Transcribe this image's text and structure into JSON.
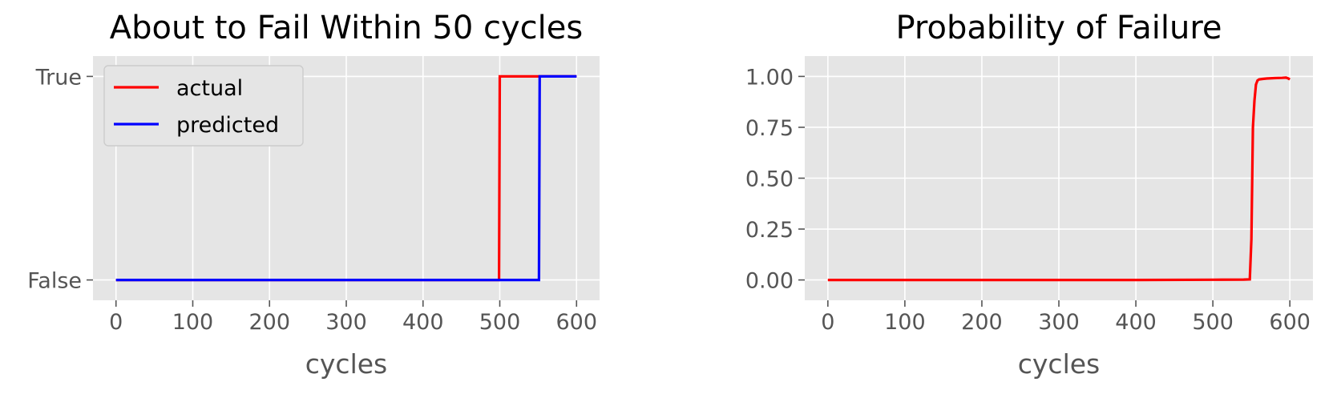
{
  "chart_data": [
    {
      "type": "line",
      "title": "About to Fail Within 50 cycles",
      "xlabel": "cycles",
      "ylabel": "",
      "xlim": [
        -30,
        630
      ],
      "ylim": [
        -0.1,
        1.1
      ],
      "xticks": [
        0,
        100,
        200,
        300,
        400,
        500,
        600
      ],
      "yticks": [
        {
          "value": 0,
          "label": "False"
        },
        {
          "value": 1,
          "label": "True"
        }
      ],
      "grid": true,
      "legend": "top-left",
      "series": [
        {
          "name": "actual",
          "color": "#ff0000",
          "x": [
            0,
            499,
            500,
            600
          ],
          "y": [
            0,
            0,
            1,
            1
          ]
        },
        {
          "name": "predicted",
          "color": "#0000ff",
          "x": [
            0,
            551,
            552,
            600
          ],
          "y": [
            0,
            0,
            1,
            1
          ]
        }
      ]
    },
    {
      "type": "line",
      "title": "Probability of Failure",
      "xlabel": "cycles",
      "ylabel": "",
      "xlim": [
        -30,
        630
      ],
      "ylim": [
        -0.1,
        1.1
      ],
      "xticks": [
        0,
        100,
        200,
        300,
        400,
        500,
        600
      ],
      "yticks": [
        {
          "value": 0,
          "label": "0.00"
        },
        {
          "value": 0.25,
          "label": "0.25"
        },
        {
          "value": 0.5,
          "label": "0.50"
        },
        {
          "value": 0.75,
          "label": "0.75"
        },
        {
          "value": 1,
          "label": "1.00"
        }
      ],
      "grid": true,
      "legend": "none",
      "series": [
        {
          "color": "#ff0000",
          "x": [
            0,
            100,
            200,
            300,
            400,
            500,
            540,
            548,
            550,
            552,
            554,
            556,
            558,
            560,
            565,
            570,
            580,
            590,
            595,
            598,
            600
          ],
          "y": [
            0,
            0,
            0,
            0,
            0,
            0.001,
            0.002,
            0.003,
            0.2,
            0.75,
            0.88,
            0.96,
            0.98,
            0.985,
            0.988,
            0.99,
            0.992,
            0.993,
            0.994,
            0.99,
            0.985
          ]
        }
      ]
    }
  ]
}
